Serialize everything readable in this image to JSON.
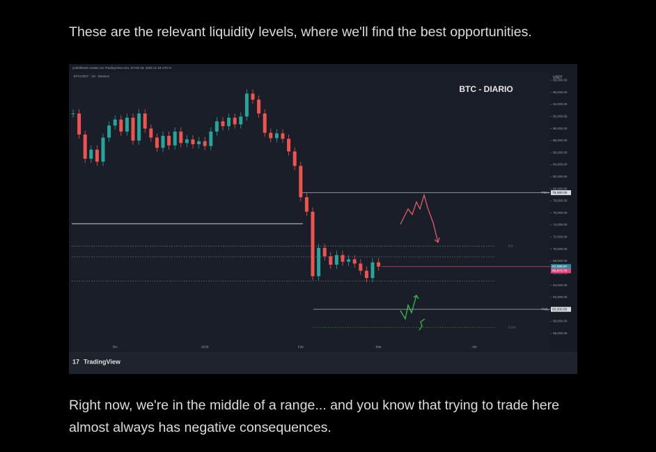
{
  "paragraphs": [
    "These are the relevant liquidity levels, where we'll find the best opportunities.",
    "Right now, we're in the middle of a range... and you know that trying to trade here almost always has negative consequences."
  ],
  "chart_data": {
    "type": "candlestick",
    "header": "yodelfstrad creado con TradingView.com, el Feb 28, 2026 21:18 UTC-5",
    "symbol": "BTCUSDT · 1D · Binance",
    "title": "BTC - DIARIO",
    "currency": "USDT",
    "brand": "TradingView",
    "categories": [
      null,
      null,
      null,
      null,
      null,
      null,
      null,
      "Dic",
      null,
      null,
      null,
      null,
      null,
      null,
      null,
      null,
      null,
      null,
      null,
      null,
      null,
      null,
      "2026",
      null,
      null,
      null,
      null,
      null,
      null,
      null,
      null,
      null,
      null,
      null,
      null,
      null,
      null,
      null,
      "Feb",
      null,
      null,
      null,
      null,
      null,
      null,
      null,
      null,
      null,
      null,
      null,
      null,
      "Mar",
      null,
      null,
      null,
      null,
      null,
      null,
      null,
      null,
      null,
      null,
      null,
      null,
      null,
      null,
      null,
      "Abr",
      null,
      null,
      null,
      null,
      null,
      null,
      null,
      null,
      null,
      null
    ],
    "values": [
      92500,
      89000,
      85000,
      86500,
      84500,
      88500,
      90500,
      91500,
      89500,
      91800,
      88000,
      92500,
      90000,
      88500,
      86800,
      88800,
      87200,
      89500,
      87600,
      88200,
      87400,
      87900,
      87100,
      89500,
      91200,
      90400,
      91800,
      90700,
      92000,
      95800,
      94800,
      92500,
      89300,
      88400,
      89200,
      88300,
      86200,
      83800,
      78600,
      76200,
      65500,
      70200,
      68800,
      67400,
      69000,
      67900,
      68300,
      67600,
      66400,
      65200,
      67800,
      67090,
      null,
      null,
      null,
      null,
      null,
      null,
      null,
      null,
      null,
      null,
      null,
      null,
      null,
      null,
      null,
      null,
      null,
      null,
      null,
      null,
      null,
      null,
      null,
      null,
      null,
      null
    ],
    "up_color": "#26a69a",
    "down_color": "#ef5350",
    "ylim": [
      54700,
      99200
    ],
    "yticks": [
      {
        "value": 98000,
        "label": "98,000.00"
      },
      {
        "value": 96000,
        "label": "96,000.00"
      },
      {
        "value": 94000,
        "label": "94,000.00"
      },
      {
        "value": 92000,
        "label": "92,000.00"
      },
      {
        "value": 90000,
        "label": "90,000.00"
      },
      {
        "value": 88000,
        "label": "88,000.00"
      },
      {
        "value": 86000,
        "label": "86,000.00"
      },
      {
        "value": 84000,
        "label": "84,000.00"
      },
      {
        "value": 82000,
        "label": "82,000.00"
      },
      {
        "value": 80000,
        "label": "80,000.00"
      },
      {
        "value": 78000,
        "label": "78,000.00"
      },
      {
        "value": 76000,
        "label": "76,000.00"
      },
      {
        "value": 74000,
        "label": "74,000.00"
      },
      {
        "value": 72000,
        "label": "72,000.00"
      },
      {
        "value": 70000,
        "label": "70,000.00"
      },
      {
        "value": 68000,
        "label": "68,000.00"
      },
      {
        "value": 66000,
        "label": "66,000.00"
      },
      {
        "value": 64000,
        "label": "64,000.00"
      },
      {
        "value": 62000,
        "label": "62,000.00"
      },
      {
        "value": 60000,
        "label": "60,000.00"
      },
      {
        "value": 58000,
        "label": "58,000.00"
      },
      {
        "value": 56000,
        "label": "56,000.00"
      }
    ],
    "levels": [
      {
        "name": "PMH",
        "value": 79360,
        "label": "79,360.00",
        "style": "solid",
        "color": "#8a909c"
      },
      {
        "value": 74200,
        "style": "solid",
        "color": "#c8ccd4"
      },
      {
        "name": "0.5",
        "value": 70500,
        "style": "dotted",
        "color": "#6f7580"
      },
      {
        "value": 68700,
        "style": "dotted",
        "color": "#6f7580"
      },
      {
        "value": 67090.67,
        "label": "67,090.67",
        "style": "solid",
        "color": "#a8405a",
        "tag": "#2a8fa0"
      },
      {
        "value": 66973.7,
        "label": "66,973.70",
        "style": "none",
        "color": "#e0457b",
        "tag": "#e0457b"
      },
      {
        "value": 64700,
        "style": "dotted",
        "color": "#6f7580"
      },
      {
        "name": "PML",
        "value": 60000,
        "label": "60,000.00",
        "style": "solid",
        "color": "#8a909c"
      },
      {
        "name": "0.5%",
        "value": 57000,
        "style": "dotted",
        "color": "#4d8a4d"
      }
    ]
  }
}
